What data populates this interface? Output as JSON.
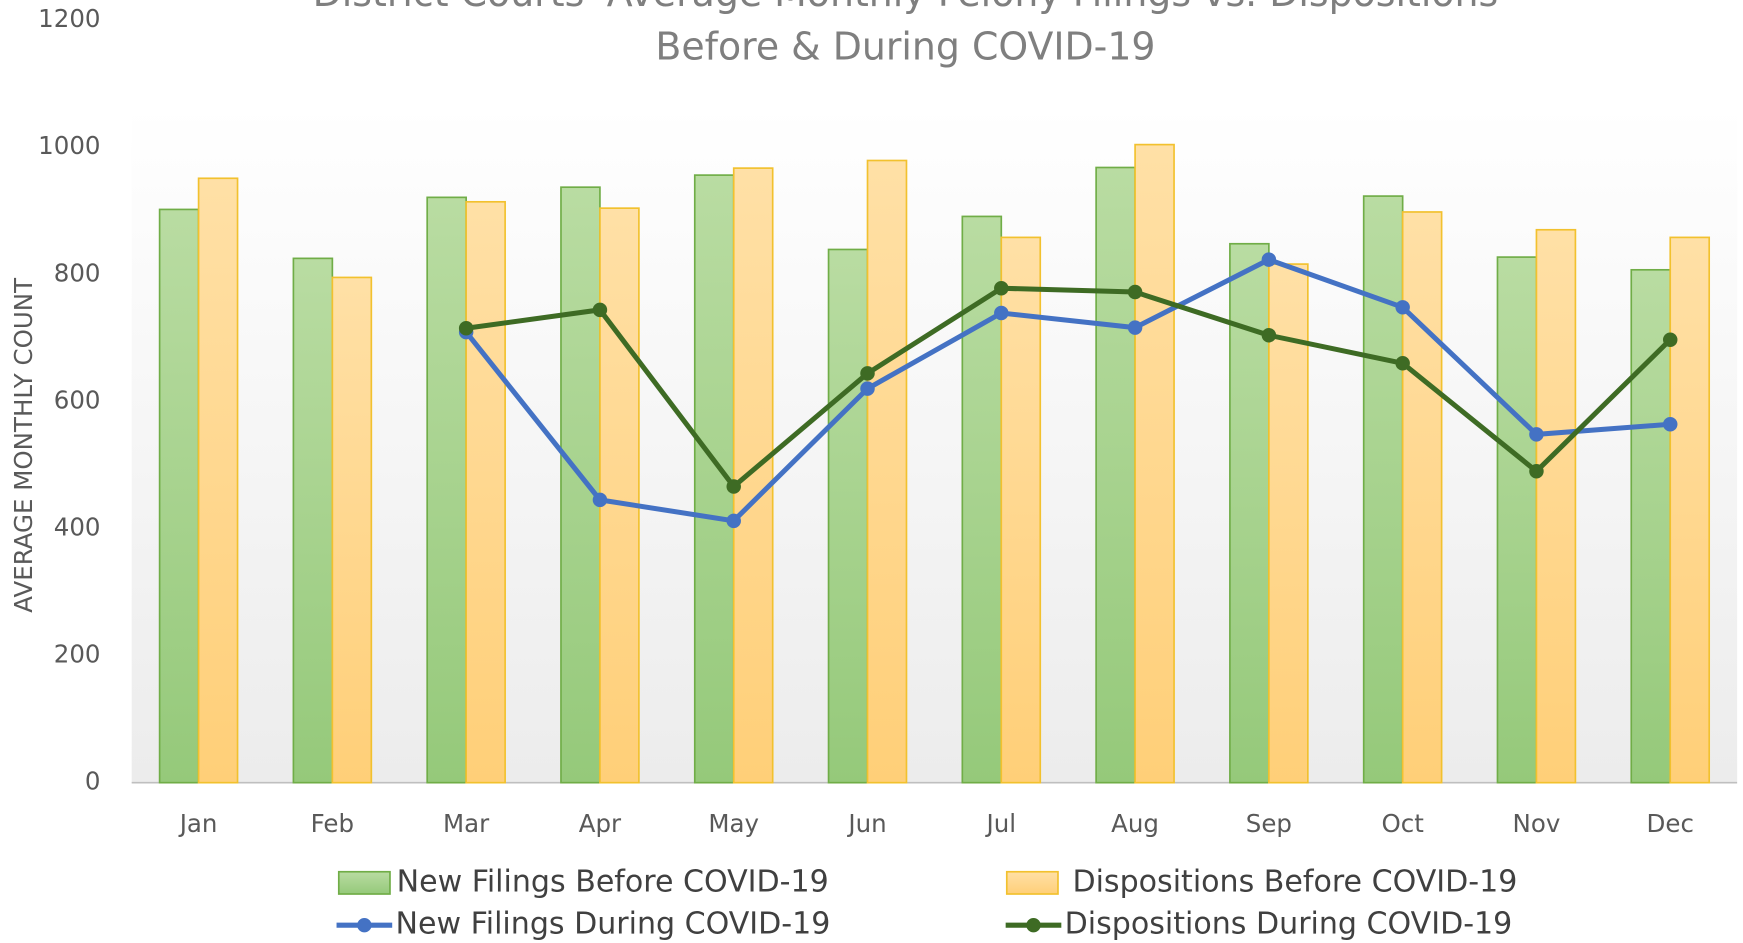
{
  "chart_data": {
    "type": "bar_line",
    "title": "District Courts' Average Monthly Felony Filings vs. Dispositions",
    "subtitle": "Before & During COVID-19",
    "y_label": "AVERAGE MONTHLY COUNT",
    "categories": [
      "Jan",
      "Feb",
      "Mar",
      "Apr",
      "May",
      "Jun",
      "Jul",
      "Aug",
      "Sep",
      "Oct",
      "Nov",
      "Dec"
    ],
    "ylim": [
      0,
      1200
    ],
    "yticks": [
      0,
      200,
      400,
      600,
      800,
      1000,
      1200
    ],
    "series": [
      {
        "name": "New Filings Before COVID-19",
        "kind": "bar",
        "color": "#a9d18e",
        "stroke": "#70ad47",
        "values": [
          902,
          825,
          921,
          937,
          956,
          839,
          891,
          968,
          848,
          923,
          827,
          807
        ]
      },
      {
        "name": "Dispositions Before COVID-19",
        "kind": "bar",
        "color": "#ffd78c",
        "stroke": "#f2c12e",
        "values": [
          951,
          795,
          914,
          904,
          967,
          979,
          858,
          1004,
          816,
          898,
          870,
          858
        ]
      },
      {
        "name": "New Filings During COVID-19",
        "kind": "line",
        "color": "#4472c4",
        "values": [
          null,
          null,
          709,
          445,
          412,
          620,
          739,
          716,
          823,
          748,
          548,
          564
        ]
      },
      {
        "name": "Dispositions During COVID-19",
        "kind": "line",
        "color": "#3e6b24",
        "values": [
          null,
          null,
          715,
          744,
          466,
          644,
          778,
          772,
          704,
          660,
          490,
          697
        ]
      }
    ]
  }
}
